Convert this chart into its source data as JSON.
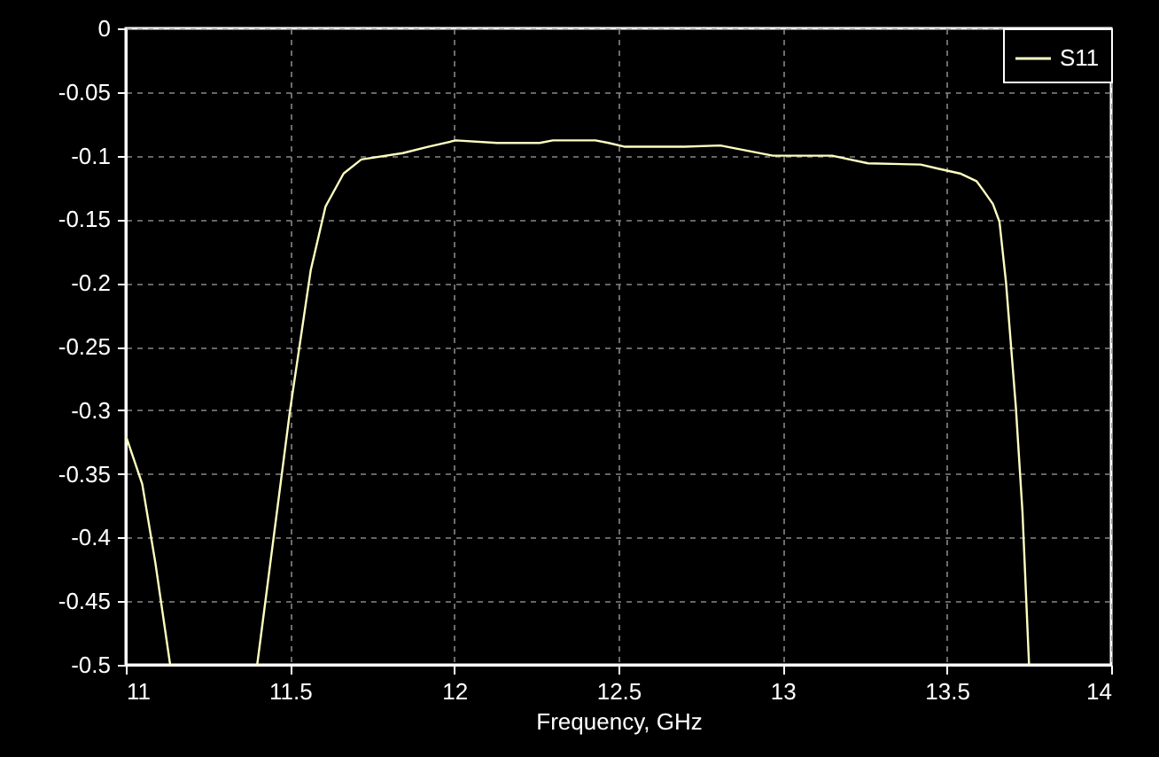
{
  "chart_data": {
    "type": "line",
    "xlabel": "Frequency, GHz",
    "x": [
      11.0,
      11.05,
      11.09,
      11.135,
      11.14,
      11.4,
      11.45,
      11.5,
      11.563,
      11.608,
      11.663,
      11.717,
      11.843,
      11.92,
      12.005,
      12.13,
      12.26,
      12.3,
      12.43,
      12.47,
      12.52,
      12.7,
      12.81,
      12.89,
      12.97,
      13.15,
      13.26,
      13.42,
      13.47,
      13.54,
      13.59,
      13.61,
      13.64,
      13.66,
      13.68,
      13.71,
      13.73,
      13.75
    ],
    "series": [
      {
        "name": "S11",
        "color": "#ffffc0",
        "values": [
          -0.32,
          -0.358,
          -0.42,
          -0.5,
          null,
          -0.5,
          -0.4,
          -0.3,
          -0.19,
          -0.14,
          -0.114,
          -0.103,
          -0.098,
          -0.093,
          -0.088,
          -0.09,
          -0.09,
          -0.088,
          -0.088,
          -0.09,
          -0.093,
          -0.093,
          -0.092,
          -0.096,
          -0.1,
          -0.1,
          -0.106,
          -0.107,
          -0.11,
          -0.114,
          -0.12,
          -0.127,
          -0.138,
          -0.152,
          -0.2,
          -0.298,
          -0.38,
          -0.5
        ]
      }
    ],
    "xlim": [
      11,
      14
    ],
    "xticks": [
      11,
      11.5,
      12,
      12.5,
      13,
      13.5,
      14
    ],
    "ylim": [
      -0.5,
      0
    ],
    "yticks": [
      0,
      -0.05,
      -0.1,
      -0.15,
      -0.2,
      -0.25,
      -0.3,
      -0.35,
      -0.4,
      -0.45,
      -0.5
    ],
    "grid": true,
    "legend": "top right",
    "marker": "none",
    "line_style": "solid"
  }
}
